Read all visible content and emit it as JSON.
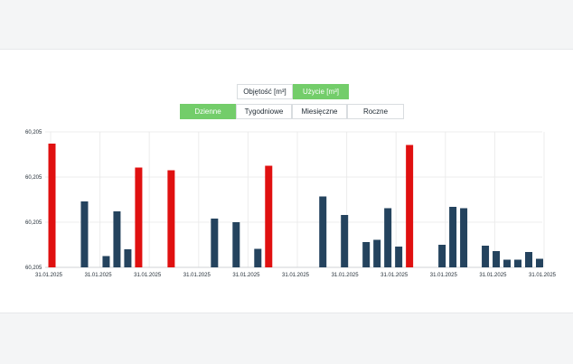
{
  "toggles": {
    "unit": [
      "Objętość [m³]",
      "Użycie [m³]"
    ],
    "unit_active": 1,
    "period": [
      "Dzienne",
      "Tygodniowe",
      "Miesięczne",
      "Roczne"
    ],
    "period_active": 0
  },
  "colors": {
    "highlight": "#e01010",
    "normal": "#24435e",
    "accent": "#73cd6a"
  },
  "chart_data": {
    "type": "bar",
    "yticks": [
      "60,205",
      "60,205",
      "60,205",
      "60,205"
    ],
    "ylim": [
      0,
      3
    ],
    "xticks": [
      "31.01.2025",
      "31.01.2025",
      "31.01.2025",
      "31.01.2025",
      "31.01.2025",
      "31.01.2025",
      "31.01.2025",
      "31.01.2025",
      "31.01.2025",
      "31.01.2025",
      "31.01.2025"
    ],
    "grid": true,
    "bars": [
      {
        "value": 2.74,
        "highlight": true
      },
      {
        "value": 0.0,
        "highlight": false
      },
      {
        "value": 0.0,
        "highlight": false
      },
      {
        "value": 1.46,
        "highlight": false
      },
      {
        "value": 0.0,
        "highlight": false
      },
      {
        "value": 0.25,
        "highlight": false
      },
      {
        "value": 1.24,
        "highlight": false
      },
      {
        "value": 0.4,
        "highlight": false
      },
      {
        "value": 2.21,
        "highlight": true
      },
      {
        "value": 0.0,
        "highlight": false
      },
      {
        "value": 0.0,
        "highlight": false
      },
      {
        "value": 2.15,
        "highlight": true
      },
      {
        "value": 0.0,
        "highlight": false
      },
      {
        "value": 0.0,
        "highlight": false
      },
      {
        "value": 0.0,
        "highlight": false
      },
      {
        "value": 1.08,
        "highlight": false
      },
      {
        "value": 0.0,
        "highlight": false
      },
      {
        "value": 1.0,
        "highlight": false
      },
      {
        "value": 0.0,
        "highlight": false
      },
      {
        "value": 0.41,
        "highlight": false
      },
      {
        "value": 2.25,
        "highlight": true
      },
      {
        "value": 0.0,
        "highlight": false
      },
      {
        "value": 0.0,
        "highlight": false
      },
      {
        "value": 0.0,
        "highlight": false
      },
      {
        "value": 0.0,
        "highlight": false
      },
      {
        "value": 1.57,
        "highlight": false
      },
      {
        "value": 0.0,
        "highlight": false
      },
      {
        "value": 1.16,
        "highlight": false
      },
      {
        "value": 0.0,
        "highlight": false
      },
      {
        "value": 0.56,
        "highlight": false
      },
      {
        "value": 0.61,
        "highlight": false
      },
      {
        "value": 1.31,
        "highlight": false
      },
      {
        "value": 0.46,
        "highlight": false
      },
      {
        "value": 2.71,
        "highlight": true
      },
      {
        "value": 0.0,
        "highlight": false
      },
      {
        "value": 0.0,
        "highlight": false
      },
      {
        "value": 0.5,
        "highlight": false
      },
      {
        "value": 1.34,
        "highlight": false
      },
      {
        "value": 1.31,
        "highlight": false
      },
      {
        "value": 0.0,
        "highlight": false
      },
      {
        "value": 0.48,
        "highlight": false
      },
      {
        "value": 0.36,
        "highlight": false
      },
      {
        "value": 0.17,
        "highlight": false
      },
      {
        "value": 0.17,
        "highlight": false
      },
      {
        "value": 0.34,
        "highlight": false
      },
      {
        "value": 0.19,
        "highlight": false
      }
    ]
  }
}
